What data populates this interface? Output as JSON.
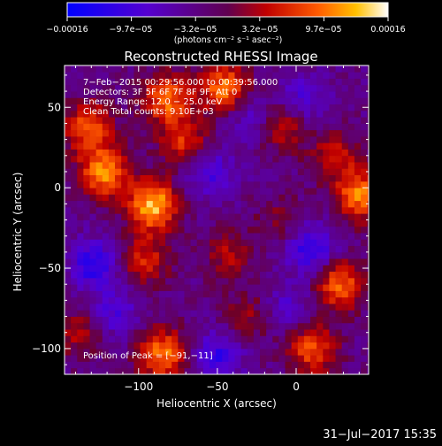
{
  "chart_data": {
    "type": "heatmap",
    "title": "Reconstructed RHESSI Image",
    "xlabel": "Heliocentric X (arcsec)",
    "ylabel": "Heliocentric Y (arcsec)",
    "xlim": [
      -147,
      46
    ],
    "ylim": [
      -116,
      76
    ],
    "x_ticks": [
      -100,
      -50,
      0
    ],
    "x_tick_labels": [
      "−100",
      "−50",
      "0"
    ],
    "y_ticks": [
      50,
      0,
      -50,
      -100
    ],
    "y_tick_labels": [
      "50",
      "0",
      "−50",
      "−100"
    ],
    "colorbar": {
      "range": [
        -0.00016,
        0.00016
      ],
      "tick_labels": [
        "−0.00016",
        "−9.7e−05",
        "−3.2e−05",
        "3.2e−05",
        "9.7e−05",
        "0.00016"
      ],
      "unit_label": "(photons cm⁻² s⁻¹ asec⁻²)"
    },
    "annotations": [
      "7−Feb−2015 00:29:56.000 to 00:39:56.000",
      "Detectors: 3F 5F 6F 7F 8F 9F, Att 0",
      "Energy Range: 12.0 − 25.0 keV",
      "Clean     Total counts: 9.10E+03",
      "Position of Peak = [−91,−11]"
    ],
    "peak_position": [
      -91,
      -11
    ],
    "bright_sources": [
      {
        "x": -91,
        "y": -11,
        "value": 0.00016
      },
      {
        "x": -122,
        "y": 10,
        "value": 0.00014
      },
      {
        "x": -132,
        "y": 38,
        "value": 0.00011
      },
      {
        "x": -82,
        "y": 55,
        "value": 0.00012
      },
      {
        "x": -70,
        "y": 28,
        "value": 9e-05
      },
      {
        "x": -45,
        "y": 62,
        "value": 0.00013
      },
      {
        "x": 40,
        "y": -5,
        "value": 0.00013
      },
      {
        "x": 25,
        "y": 20,
        "value": 7e-05
      },
      {
        "x": -8,
        "y": 38,
        "value": 7e-05
      },
      {
        "x": 28,
        "y": -60,
        "value": 0.00012
      },
      {
        "x": -42,
        "y": -42,
        "value": 6e-05
      },
      {
        "x": -96,
        "y": -45,
        "value": 8e-05
      },
      {
        "x": -85,
        "y": -103,
        "value": 0.00013
      },
      {
        "x": 10,
        "y": -100,
        "value": 0.00011
      },
      {
        "x": -30,
        "y": -80,
        "value": 5e-05
      },
      {
        "x": -138,
        "y": -90,
        "value": 6e-05
      },
      {
        "x": -10,
        "y": -20,
        "value": 4e-05
      }
    ],
    "dark_sources": [
      {
        "x": -128,
        "y": -48,
        "value": -9e-05
      },
      {
        "x": -55,
        "y": 10,
        "value": -7e-05
      },
      {
        "x": 10,
        "y": -38,
        "value": -9e-05
      },
      {
        "x": -50,
        "y": -105,
        "value": -8e-05
      },
      {
        "x": 5,
        "y": 55,
        "value": -6e-05
      },
      {
        "x": -30,
        "y": 45,
        "value": -5e-05
      },
      {
        "x": -115,
        "y": -78,
        "value": -6e-05
      },
      {
        "x": -5,
        "y": -75,
        "value": -5e-05
      }
    ]
  },
  "footer": {
    "timestamp": "31−Jul−2017 15:35"
  }
}
